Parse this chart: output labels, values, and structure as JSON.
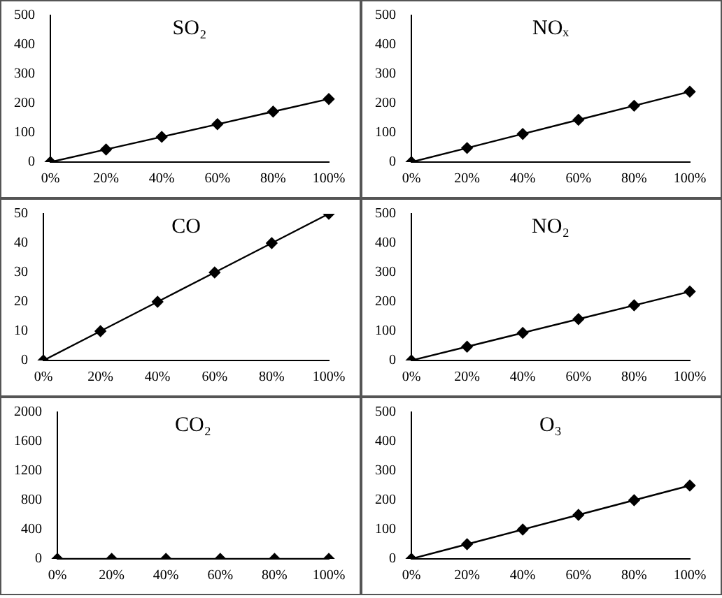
{
  "chart_data": [
    {
      "type": "line",
      "title": "SO₂",
      "categories": [
        "0%",
        "20%",
        "40%",
        "60%",
        "80%",
        "100%"
      ],
      "values": [
        0,
        43,
        86,
        129,
        172,
        215
      ],
      "color": "#000000",
      "ylim": [
        0,
        500
      ],
      "yticks": [
        0,
        100,
        200,
        300,
        400,
        500
      ],
      "grid": false,
      "marker": "diamond"
    },
    {
      "type": "line",
      "title": "NOₓ",
      "categories": [
        "0%",
        "20%",
        "40%",
        "60%",
        "80%",
        "100%"
      ],
      "values": [
        0,
        48,
        96,
        144,
        192,
        240
      ],
      "color": "#000000",
      "ylim": [
        0,
        500
      ],
      "yticks": [
        0,
        100,
        200,
        300,
        400,
        500
      ],
      "grid": false,
      "marker": "diamond"
    },
    {
      "type": "line",
      "title": "CO",
      "categories": [
        "0%",
        "20%",
        "40%",
        "60%",
        "80%",
        "100%"
      ],
      "values": [
        0,
        10,
        20,
        30,
        40,
        50
      ],
      "color": "#000000",
      "ylim": [
        0,
        50
      ],
      "yticks": [
        0,
        10,
        20,
        30,
        40,
        50
      ],
      "grid": false,
      "marker": "diamond"
    },
    {
      "type": "line",
      "title": "NO₂",
      "categories": [
        "0%",
        "20%",
        "40%",
        "60%",
        "80%",
        "100%"
      ],
      "values": [
        0,
        47,
        94,
        141,
        188,
        235
      ],
      "color": "#000000",
      "ylim": [
        0,
        500
      ],
      "yticks": [
        0,
        100,
        200,
        300,
        400,
        500
      ],
      "grid": false,
      "marker": "diamond"
    },
    {
      "type": "line",
      "title": "CO₂",
      "categories": [
        "0%",
        "20%",
        "40%",
        "60%",
        "80%",
        "100%"
      ],
      "values": [
        0,
        0,
        0,
        0,
        0,
        0
      ],
      "color": "#000000",
      "ylim": [
        0,
        2000
      ],
      "yticks": [
        0,
        400,
        800,
        1200,
        1600,
        2000
      ],
      "grid": false,
      "marker": "diamond"
    },
    {
      "type": "line",
      "title": "O₃",
      "categories": [
        "0%",
        "20%",
        "40%",
        "60%",
        "80%",
        "100%"
      ],
      "values": [
        0,
        50,
        100,
        150,
        200,
        250
      ],
      "color": "#000000",
      "ylim": [
        0,
        500
      ],
      "yticks": [
        0,
        100,
        200,
        300,
        400,
        500
      ],
      "grid": false,
      "marker": "diamond"
    }
  ]
}
